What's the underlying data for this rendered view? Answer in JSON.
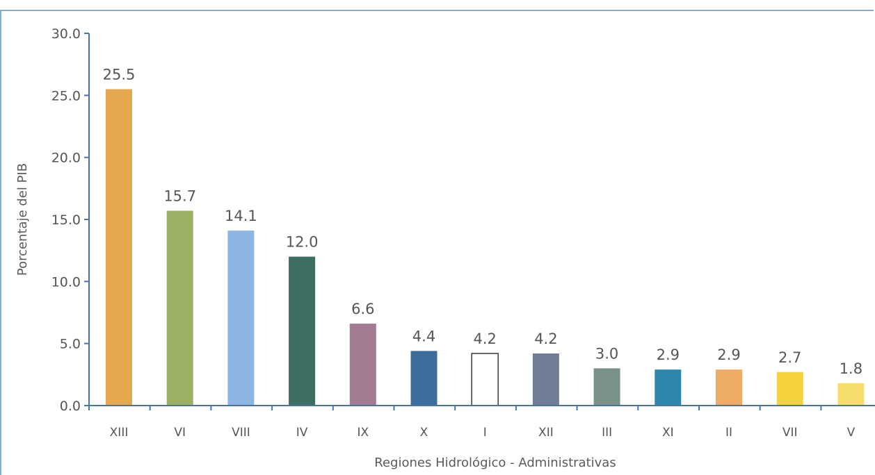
{
  "chart_data": {
    "type": "bar",
    "title": "",
    "xlabel": "Regiones Hidrológico - Administrativas",
    "ylabel": "Porcentaje del PIB",
    "ylim": [
      0,
      30
    ],
    "yticks": [
      "0.0",
      "5.0",
      "10.0",
      "15.0",
      "20.0",
      "25.0",
      "30.0"
    ],
    "grid": false,
    "categories": [
      "XIII",
      "VI",
      "VIII",
      "IV",
      "IX",
      "X",
      "I",
      "XII",
      "III",
      "XI",
      "II",
      "VII",
      "V"
    ],
    "values": [
      25.5,
      15.7,
      14.1,
      12.0,
      6.6,
      4.4,
      4.2,
      4.2,
      3.0,
      2.9,
      2.9,
      2.7,
      1.8
    ],
    "value_labels": [
      "25.5",
      "15.7",
      "14.1",
      "12.0",
      "6.6",
      "4.4",
      "4.2",
      "4.2",
      "3.0",
      "2.9",
      "2.9",
      "2.7",
      "1.8"
    ],
    "colors": [
      "#e5a84e",
      "#9bb063",
      "#8db5e2",
      "#3c6e62",
      "#a27a92",
      "#3e6d9c",
      "#ffffff",
      "#6f7d96",
      "#7a918a",
      "#2e86ab",
      "#eeab65",
      "#f4d23e",
      "#f6dc6a"
    ],
    "axis_color": "#4a73a8"
  }
}
